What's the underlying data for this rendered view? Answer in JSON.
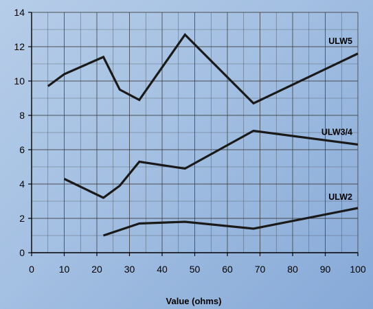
{
  "chart_data": {
    "type": "line",
    "xlabel": "Value (ohms)",
    "ylabel": "",
    "xlim": [
      0,
      100
    ],
    "ylim": [
      0,
      14
    ],
    "x_ticks": [
      0,
      10,
      20,
      30,
      40,
      50,
      60,
      70,
      80,
      90,
      100
    ],
    "y_ticks": [
      0,
      2,
      4,
      6,
      8,
      10,
      12,
      14
    ],
    "x_minor_step": 5,
    "y_minor_step": 1,
    "grid": true,
    "series": [
      {
        "name": "ULW5",
        "x": [
          5,
          10,
          22,
          27,
          33,
          47,
          68,
          100
        ],
        "y": [
          9.7,
          10.4,
          11.4,
          9.5,
          8.9,
          12.7,
          8.7,
          11.6
        ]
      },
      {
        "name": "ULW3/4",
        "x": [
          10,
          22,
          27,
          33,
          47,
          68,
          100
        ],
        "y": [
          4.3,
          3.2,
          3.9,
          5.3,
          4.9,
          7.1,
          6.3
        ]
      },
      {
        "name": "ULW2",
        "x": [
          22,
          33,
          47,
          68,
          100
        ],
        "y": [
          1.0,
          1.7,
          1.8,
          1.4,
          2.6
        ]
      }
    ],
    "colors": {
      "line": "#1a1a1a",
      "grid": "#3a3a3a",
      "background_start": "#b6cde8",
      "background_end": "#86a9d7"
    }
  }
}
